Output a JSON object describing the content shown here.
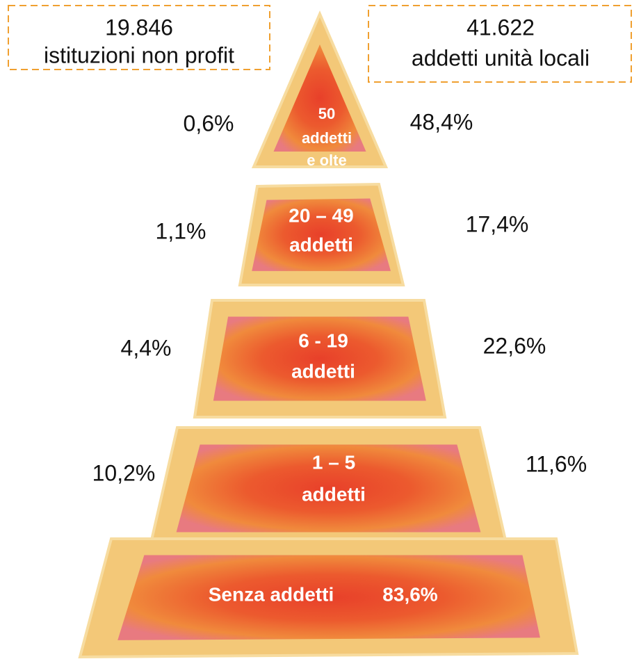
{
  "boxes": [
    {
      "number": "19.846",
      "label": "istituzioni non profit"
    },
    {
      "number": "41.622",
      "label": "addetti unità locali"
    }
  ],
  "tiers": [
    {
      "lines": [
        "50",
        "addetti",
        "e olte"
      ],
      "left": "0,6%",
      "right": "48,4%"
    },
    {
      "lines": [
        "20 – 49",
        "addetti"
      ],
      "left": "1,1%",
      "right": "17,4%"
    },
    {
      "lines": [
        "6 - 19",
        "addetti"
      ],
      "left": "4,4%",
      "right": "22,6%"
    },
    {
      "lines": [
        "1 – 5",
        "addetti"
      ],
      "left": "10,2%",
      "right": "11,6%"
    },
    {
      "lines": [
        "Senza addetti",
        "83,6%"
      ]
    }
  ]
}
